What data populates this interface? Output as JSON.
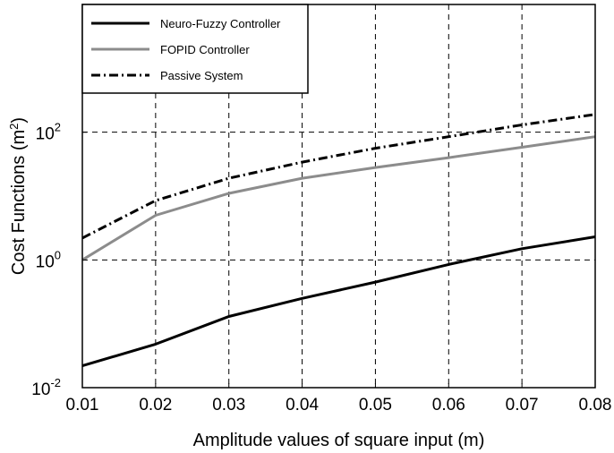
{
  "chart_data": {
    "type": "line",
    "xlabel": "Amplitude values of square input (m)",
    "ylabel": "Cost Functions (m",
    "ylabel_superscript": "2",
    "ylabel_close": ")",
    "yscale": "log",
    "xlim": [
      0.01,
      0.08
    ],
    "ylim": [
      0.01,
      10000
    ],
    "grid": true,
    "legend_position": "top-left",
    "x_ticks": [
      "0.01",
      "0.02",
      "0.03",
      "0.04",
      "0.05",
      "0.06",
      "0.07",
      "0.08"
    ],
    "y_ticks": [
      {
        "base": "10",
        "exp": "-2",
        "value": 0.01
      },
      {
        "base": "10",
        "exp": "0",
        "value": 1
      },
      {
        "base": "10",
        "exp": "2",
        "value": 100
      }
    ],
    "x": [
      0.01,
      0.02,
      0.03,
      0.04,
      0.05,
      0.06,
      0.07,
      0.08
    ],
    "series": [
      {
        "name": "Neuro-Fuzzy Controller",
        "values": [
          0.022,
          0.048,
          0.13,
          0.25,
          0.45,
          0.85,
          1.5,
          2.3
        ],
        "color": "#000000",
        "dash": "solid"
      },
      {
        "name": "FOPID Controller",
        "values": [
          1.0,
          5.0,
          11.0,
          19.0,
          28.0,
          40.0,
          58.0,
          85.0
        ],
        "color": "#8c8c8c",
        "dash": "solid"
      },
      {
        "name": "Passive System",
        "values": [
          2.2,
          8.5,
          19.0,
          34.0,
          56.0,
          85.0,
          130.0,
          190.0
        ],
        "color": "#000000",
        "dash": "dashdot"
      }
    ]
  }
}
